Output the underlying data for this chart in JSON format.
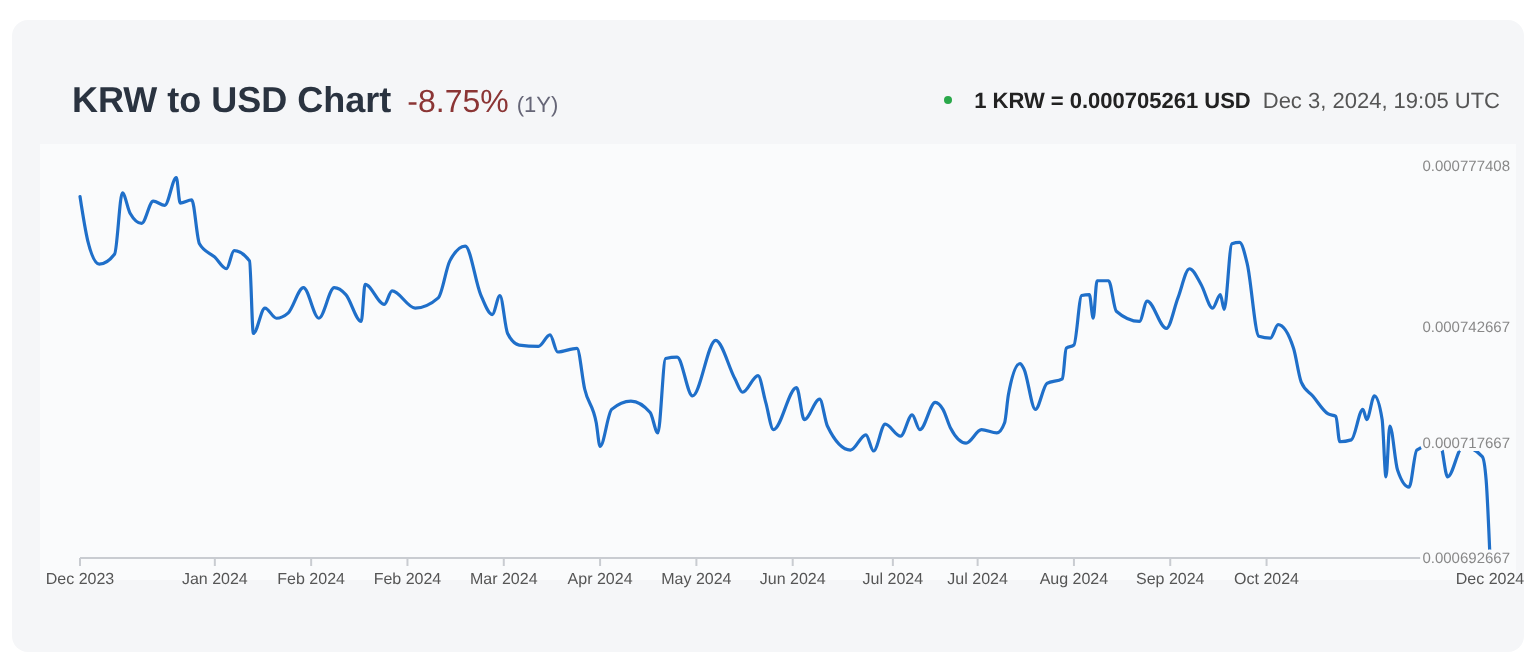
{
  "chart_data": {
    "type": "line",
    "title": "KRW to USD Chart",
    "subtitle": "-8.75%",
    "annotations": [
      "(1Y)",
      "1 KRW = 0.000705261 USD",
      "Dec 3, 2024, 19:05 UTC"
    ],
    "xlim": [
      "2023-12-03",
      "2024-12-03"
    ],
    "xticks": [
      {
        "value": "2023-12-03",
        "label": "Dec 2023"
      },
      {
        "value": "2024-01-07",
        "label": "Jan 2024"
      },
      {
        "value": "2024-02-01",
        "label": "Feb 2024"
      },
      {
        "value": "2024-02-26",
        "label": "Feb 2024"
      },
      {
        "value": "2024-03-22",
        "label": "Mar 2024"
      },
      {
        "value": "2024-04-16",
        "label": "Apr 2024"
      },
      {
        "value": "2024-05-11",
        "label": "May 2024"
      },
      {
        "value": "2024-06-05",
        "label": "Jun 2024"
      },
      {
        "value": "2024-07-01",
        "label": "Jul 2024"
      },
      {
        "value": "2024-07-23",
        "label": "Jul 2024"
      },
      {
        "value": "2024-08-17",
        "label": "Aug 2024"
      },
      {
        "value": "2024-09-11",
        "label": "Sep 2024"
      },
      {
        "value": "2024-10-06",
        "label": "Oct 2024"
      },
      {
        "value": "2024-12-03",
        "label": "Dec 2024"
      }
    ],
    "ylim": [
      0.000692667,
      0.000777408
    ],
    "yticks": [
      0.000692667,
      0.000717667,
      0.000742667,
      0.000777408
    ],
    "marker": "none",
    "series": [
      {
        "color": "#1f6fc9",
        "x": [
          "2023-12-03",
          "2023-12-05",
          "2023-12-08",
          "2023-12-12",
          "2023-12-14",
          "2023-12-16",
          "2023-12-19",
          "2023-12-22",
          "2023-12-25",
          "2023-12-28",
          "2023-12-29",
          "2024-01-01",
          "2024-01-03",
          "2024-01-07",
          "2024-01-10",
          "2024-01-12",
          "2024-01-16",
          "2024-01-17",
          "2024-01-20",
          "2024-01-23",
          "2024-01-26",
          "2024-01-30",
          "2024-02-03",
          "2024-02-07",
          "2024-02-10",
          "2024-02-14",
          "2024-02-15",
          "2024-02-20",
          "2024-02-22",
          "2024-02-28",
          "2024-03-05",
          "2024-03-08",
          "2024-03-12",
          "2024-03-16",
          "2024-03-19",
          "2024-03-21",
          "2024-03-23",
          "2024-03-26",
          "2024-03-31",
          "2024-04-03",
          "2024-04-05",
          "2024-04-10",
          "2024-04-12",
          "2024-04-15",
          "2024-04-16",
          "2024-04-19",
          "2024-04-24",
          "2024-04-29",
          "2024-05-01",
          "2024-05-03",
          "2024-05-06",
          "2024-05-10",
          "2024-05-16",
          "2024-05-21",
          "2024-05-23",
          "2024-05-27",
          "2024-05-29",
          "2024-05-31",
          "2024-06-06",
          "2024-06-08",
          "2024-06-12",
          "2024-06-14",
          "2024-06-20",
          "2024-06-24",
          "2024-06-26",
          "2024-06-29",
          "2024-07-03",
          "2024-07-06",
          "2024-07-08",
          "2024-07-12",
          "2024-07-14",
          "2024-07-16",
          "2024-07-20",
          "2024-07-24",
          "2024-07-28",
          "2024-07-30",
          "2024-07-31",
          "2024-08-03",
          "2024-08-04",
          "2024-08-07",
          "2024-08-10",
          "2024-08-14",
          "2024-08-15",
          "2024-08-17",
          "2024-08-19",
          "2024-08-21",
          "2024-08-22",
          "2024-08-23",
          "2024-08-26",
          "2024-08-28",
          "2024-09-03",
          "2024-09-05",
          "2024-09-10",
          "2024-09-13",
          "2024-09-16",
          "2024-09-19",
          "2024-09-22",
          "2024-09-24",
          "2024-09-25",
          "2024-09-27",
          "2024-09-29",
          "2024-10-01",
          "2024-10-04",
          "2024-10-07",
          "2024-10-09",
          "2024-10-13",
          "2024-10-15",
          "2024-10-18",
          "2024-10-22",
          "2024-10-24",
          "2024-10-25",
          "2024-10-28",
          "2024-10-31",
          "2024-11-01",
          "2024-11-03",
          "2024-11-05",
          "2024-11-06",
          "2024-11-07",
          "2024-11-09",
          "2024-11-12",
          "2024-11-14",
          "2024-11-20",
          "2024-11-22",
          "2024-11-26",
          "2024-12-01",
          "2024-12-02",
          "2024-12-03"
        ],
        "values": [
          0.0007708,
          0.0007613,
          0.0007562,
          0.0007584,
          0.0007716,
          0.0007672,
          0.000765,
          0.0007698,
          0.0007689,
          0.0007749,
          0.0007694,
          0.0007701,
          0.0007606,
          0.0007577,
          0.0007552,
          0.0007591,
          0.0007569,
          0.0007412,
          0.0007467,
          0.0007445,
          0.0007456,
          0.0007511,
          0.0007445,
          0.0007511,
          0.0007496,
          0.0007438,
          0.0007518,
          0.0007475,
          0.0007504,
          0.0007467,
          0.0007489,
          0.0007569,
          0.0007601,
          0.0007496,
          0.0007453,
          0.0007494,
          0.0007412,
          0.0007387,
          0.0007384,
          0.0007409,
          0.0007372,
          0.000738,
          0.0007292,
          0.0007219,
          0.0007168,
          0.0007248,
          0.0007266,
          0.0007241,
          0.0007197,
          0.0007358,
          0.0007361,
          0.0007277,
          0.0007397,
          0.0007314,
          0.0007285,
          0.0007321,
          0.0007263,
          0.0007204,
          0.0007295,
          0.0007226,
          0.000727,
          0.0007212,
          0.000716,
          0.0007193,
          0.0007158,
          0.0007216,
          0.000719,
          0.0007236,
          0.0007204,
          0.0007263,
          0.0007248,
          0.0007207,
          0.0007175,
          0.0007204,
          0.0007197,
          0.0007219,
          0.000728,
          0.0007347,
          0.0007336,
          0.0007248,
          0.0007304,
          0.0007314,
          0.000738,
          0.0007387,
          0.0007494,
          0.0007496,
          0.0007445,
          0.0007526,
          0.0007526,
          0.000746,
          0.0007438,
          0.0007482,
          0.0007423,
          0.0007489,
          0.0007552,
          0.0007518,
          0.0007467,
          0.0007496,
          0.0007464,
          0.0007606,
          0.0007609,
          0.0007562,
          0.0007406,
          0.0007402,
          0.0007431,
          0.000738,
          0.0007307,
          0.0007277,
          0.0007238,
          0.0007233,
          0.0007178,
          0.0007182,
          0.0007248,
          0.0007226,
          0.0007277,
          0.0007226,
          0.0007102,
          0.0007212,
          0.0007117,
          0.000708,
          0.000716,
          0.0007175,
          0.0007102,
          0.0007168,
          0.0007146,
          0.0007095,
          0.0006927
        ]
      }
    ]
  }
}
